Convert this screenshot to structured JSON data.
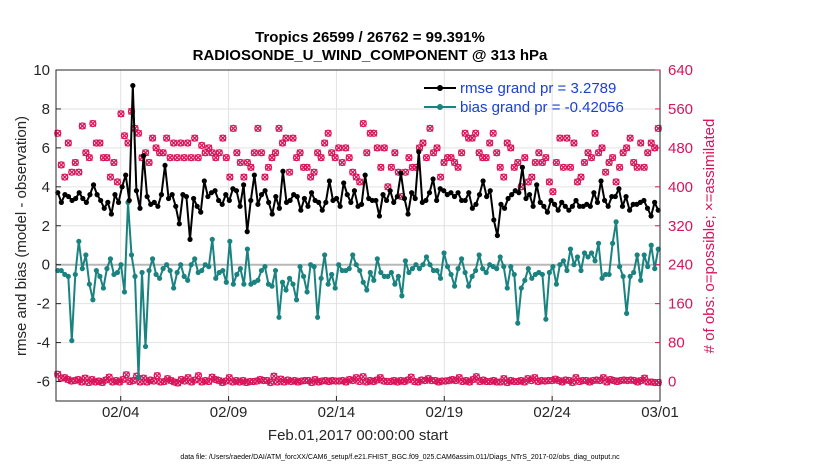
{
  "chart_data": {
    "type": "line",
    "title_line1": "Tropics 26599 / 26762 = 99.391%",
    "title_line2": "RADIOSONDE_U_WIND_COMPONENT @ 313 hPa",
    "xlabel": "Feb.01,2017 00:00:00 start",
    "ylabel_left": "rmse and bias (model - observation)",
    "ylabel_right": "# of obs: o=possible; ×=assimilated",
    "footnote": "data file: /Users/raeder/DAI/ATM_forcXX/CAM6_setup/f.e21.FHIST_BGC.f09_025.CAM6assim.011/Diags_NTrS_2017-02/obs_diag_output.nc",
    "x_range_days": [
      0,
      28
    ],
    "x_ticks": [
      {
        "day": 3,
        "label": "02/04"
      },
      {
        "day": 8,
        "label": "02/09"
      },
      {
        "day": 13,
        "label": "02/14"
      },
      {
        "day": 18,
        "label": "02/19"
      },
      {
        "day": 23,
        "label": "02/24"
      },
      {
        "day": 28,
        "label": "03/01"
      }
    ],
    "ylim_left": [
      -7,
      10
    ],
    "yticks_left": [
      -6,
      -4,
      -2,
      0,
      2,
      4,
      6,
      8,
      10
    ],
    "ylim_right": [
      -40,
      640
    ],
    "yticks_right": [
      0,
      80,
      160,
      240,
      320,
      400,
      480,
      560,
      640
    ],
    "series": [
      {
        "name": "rmse",
        "legend": "rmse grand pr = 3.2789",
        "color": "#000000",
        "values": [
          3.7,
          3.2,
          3.6,
          3.5,
          3.3,
          3.4,
          3.7,
          3.4,
          3.2,
          3.6,
          4.1,
          3.6,
          3.3,
          2.9,
          3.2,
          2.6,
          3.6,
          3.2,
          4.0,
          4.6,
          3.3,
          9.2,
          3.8,
          2.9,
          5.6,
          3.5,
          3.1,
          3.2,
          3.0,
          3.6,
          5.1,
          3.4,
          3.6,
          3.0,
          2.1,
          3.6,
          3.5,
          1.3,
          3.4,
          3.0,
          2.7,
          4.3,
          3.5,
          3.7,
          3.8,
          3.3,
          3.1,
          3.6,
          3.3,
          3.9,
          3.8,
          3.0,
          4.1,
          1.7,
          3.3,
          4.6,
          3.1,
          3.6,
          3.8,
          3.2,
          2.6,
          3.5,
          2.9,
          4.8,
          3.2,
          3.3,
          3.6,
          3.5,
          2.8,
          3.4,
          3.0,
          3.7,
          3.3,
          3.2,
          2.8,
          3.2,
          4.3,
          3.3,
          3.4,
          3.0,
          4.2,
          3.6,
          3.2,
          3.8,
          3.0,
          3.1,
          4.6,
          3.4,
          3.3,
          3.3,
          2.5,
          3.6,
          3.3,
          3.8,
          3.2,
          3.5,
          4.7,
          3.4,
          2.6,
          3.7,
          3.4,
          5.8,
          3.2,
          3.3,
          3.7,
          4.4,
          3.3,
          3.9,
          3.8,
          3.6,
          3.7,
          3.5,
          3.7,
          3.3,
          3.3,
          3.7,
          2.9,
          3.1,
          3.6,
          4.3,
          3.5,
          3.8,
          2.3,
          1.5,
          3.1,
          2.9,
          3.4,
          3.6,
          3.8,
          3.7,
          5.0,
          3.4,
          3.6,
          3.0,
          4.1,
          3.2,
          3.0,
          2.7,
          3.3,
          3.1,
          2.8,
          3.2,
          3.0,
          2.8,
          3.0,
          3.3,
          3.0,
          3.0,
          3.1,
          3.0,
          3.7,
          3.2,
          4.3,
          3.3,
          3.0,
          3.5,
          3.5,
          3.9,
          3.0,
          3.5,
          2.8,
          3.1,
          3.1,
          3.2,
          3.3,
          2.9,
          2.5,
          3.2,
          2.8
        ]
      },
      {
        "name": "bias",
        "legend": "bias grand pr = -0.42056",
        "color": "#1a8380",
        "values": [
          -0.3,
          -0.3,
          -0.5,
          -0.6,
          -3.9,
          -0.5,
          1.2,
          -0.2,
          0.5,
          -1.0,
          -1.8,
          -0.3,
          -0.6,
          -1.2,
          -0.2,
          0.3,
          -0.5,
          -0.4,
          0.0,
          -1.4,
          3.2,
          0.5,
          -0.6,
          -5.8,
          -0.4,
          -4.2,
          -0.3,
          0.3,
          -0.5,
          -0.7,
          -0.2,
          0.0,
          -0.3,
          -1.2,
          -0.4,
          0.0,
          -0.6,
          -0.8,
          0.0,
          0.3,
          -0.4,
          -0.3,
          0.0,
          -0.1,
          1.3,
          -0.7,
          -0.4,
          -0.3,
          -0.9,
          1.2,
          -1.0,
          -0.5,
          -0.2,
          -1.0,
          0.8,
          -1.0,
          -0.9,
          -0.8,
          -0.3,
          -0.1,
          -1.0,
          -1.1,
          -0.3,
          -2.7,
          -0.9,
          -1.3,
          -0.7,
          -1.0,
          -1.8,
          -0.1,
          -0.6,
          -1.4,
          0.0,
          -0.1,
          -2.7,
          -0.7,
          0.5,
          -1.0,
          -0.5,
          -1.2,
          0.0,
          -0.3,
          -0.3,
          -0.2,
          0.5,
          0.0,
          -0.3,
          -0.9,
          -1.3,
          -0.4,
          -0.8,
          0.3,
          -0.4,
          -0.6,
          -0.6,
          -0.4,
          -1.0,
          -0.6,
          -1.6,
          0.2,
          -0.4,
          -0.2,
          0.0,
          -0.2,
          0.0,
          0.4,
          0.0,
          -0.3,
          -0.3,
          -0.7,
          0.6,
          -0.1,
          -0.5,
          -1.1,
          -0.2,
          0.3,
          -0.4,
          -1.1,
          -0.6,
          -0.3,
          0.5,
          -0.2,
          -0.4,
          0.0,
          -0.1,
          -0.2,
          0.4,
          -0.1,
          -1.2,
          -0.1,
          -0.5,
          -3.0,
          -1.2,
          -0.8,
          -0.2,
          -0.7,
          -0.5,
          -0.4,
          -0.5,
          -2.8,
          -0.4,
          -0.1,
          -1.0,
          0.0,
          0.2,
          -0.3,
          0.8,
          0.0,
          0.4,
          -0.3,
          0.6,
          0.4,
          0.6,
          0.2,
          1.1,
          -0.7,
          -0.5,
          -0.5,
          1.1,
          2.2,
          -0.1,
          -0.6,
          -2.5,
          -0.6,
          -0.4,
          0.5,
          -0.8,
          0.5,
          -0.1,
          1.0,
          -0.2,
          0.8
        ]
      }
    ],
    "obs_counts": {
      "color": "#d8145a",
      "upper_possible": [
        510,
        445,
        420,
        490,
        430,
        450,
        430,
        525,
        470,
        460,
        530,
        490,
        490,
        460,
        460,
        420,
        450,
        410,
        550,
        505,
        490,
        555,
        520,
        510,
        460,
        470,
        450,
        500,
        480,
        470,
        470,
        500,
        460,
        490,
        460,
        490,
        460,
        490,
        460,
        500,
        460,
        485,
        470,
        480,
        470,
        460,
        470,
        500,
        460,
        420,
        520,
        470,
        450,
        420,
        450,
        440,
        470,
        520,
        470,
        420,
        440,
        460,
        470,
        520,
        490,
        500,
        430,
        500,
        460,
        470,
        440,
        440,
        420,
        430,
        470,
        460,
        490,
        510,
        470,
        460,
        480,
        450,
        480,
        460,
        430,
        420,
        410,
        530,
        470,
        510,
        510,
        480,
        440,
        480,
        400,
        440,
        470,
        430,
        380,
        430,
        460,
        440,
        440,
        480,
        490,
        460,
        520,
        470,
        480,
        420,
        450,
        460,
        460,
        450,
        440,
        470,
        510,
        500,
        500,
        510,
        470,
        460,
        460,
        490,
        510,
        470,
        440,
        420,
        490,
        480,
        440,
        450,
        400,
        460,
        410,
        420,
        450,
        470,
        450,
        460,
        410,
        390,
        450,
        500,
        440,
        500,
        440,
        490,
        410,
        420,
        450,
        470,
        460,
        510,
        470,
        480,
        430,
        450,
        460,
        410,
        440,
        470,
        480,
        500,
        450,
        440,
        490,
        440,
        470,
        490,
        480,
        520
      ],
      "lower_possible": [
        15,
        7,
        8,
        4,
        1,
        2,
        4,
        -1,
        7,
        -2,
        4,
        -1,
        1,
        -2,
        3,
        9,
        -1,
        2,
        -1,
        4,
        14,
        0,
        2,
        11,
        -1,
        7,
        -1,
        3,
        1,
        12,
        -1,
        0,
        6,
        2,
        -1,
        -3,
        4,
        1,
        8,
        -1,
        3,
        12,
        -1,
        2,
        0,
        9,
        4,
        2,
        -2,
        1,
        8,
        -1,
        2,
        -1,
        2,
        -2,
        0,
        0,
        1,
        4,
        2,
        2,
        -2,
        11,
        -1,
        5,
        -1,
        3,
        0,
        2,
        -1,
        1,
        2,
        2,
        -2,
        4,
        -1,
        1,
        2,
        0,
        2,
        1,
        1,
        2,
        -1,
        4,
        2,
        8,
        0,
        10,
        -1,
        2,
        0,
        3,
        8,
        1,
        0,
        0,
        2,
        -1,
        2,
        0,
        3,
        9,
        0,
        -1,
        3,
        2,
        6,
        2,
        2,
        -1,
        1,
        1,
        2,
        4,
        2,
        8,
        0,
        2,
        -1,
        4,
        10,
        0,
        3,
        0,
        0,
        2,
        -1,
        -1,
        6,
        -2,
        2,
        0,
        0,
        2,
        -1,
        6,
        2,
        8,
        0,
        2,
        1,
        2,
        2,
        5,
        2,
        -1,
        3,
        2,
        -2,
        8,
        0,
        2,
        2,
        -1,
        2,
        3,
        2,
        8,
        -1,
        4,
        2,
        0,
        2,
        3,
        2,
        3,
        2,
        -1,
        2,
        7,
        -1,
        -1,
        -2,
        -2
      ]
    }
  }
}
